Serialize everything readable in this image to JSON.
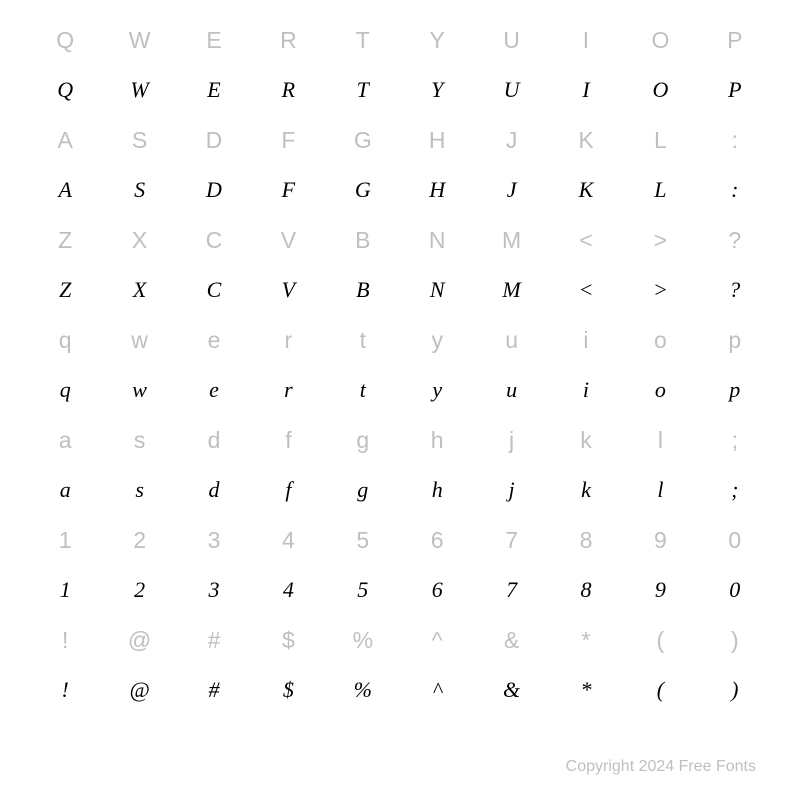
{
  "chart": {
    "type": "table",
    "background_color": "#ffffff",
    "ref_color": "#bfbfbf",
    "glyph_color": "#000000",
    "ref_fontsize": 23,
    "glyph_fontsize": 22,
    "columns": 10,
    "row_pair_heights": {
      "ref": 44,
      "glyph": 56
    },
    "rows": [
      {
        "ref": [
          "Q",
          "W",
          "E",
          "R",
          "T",
          "Y",
          "U",
          "I",
          "O",
          "P"
        ],
        "glyph": [
          "Q",
          "W",
          "E",
          "R",
          "T",
          "Y",
          "U",
          "I",
          "O",
          "P"
        ]
      },
      {
        "ref": [
          "A",
          "S",
          "D",
          "F",
          "G",
          "H",
          "J",
          "K",
          "L",
          ":"
        ],
        "glyph": [
          "A",
          "S",
          "D",
          "F",
          "G",
          "H",
          "J",
          "K",
          "L",
          ":"
        ]
      },
      {
        "ref": [
          "Z",
          "X",
          "C",
          "V",
          "B",
          "N",
          "M",
          "<",
          ">",
          "?"
        ],
        "glyph": [
          "Z",
          "X",
          "C",
          "V",
          "B",
          "N",
          "M",
          "<",
          ">",
          "?"
        ]
      },
      {
        "ref": [
          "q",
          "w",
          "e",
          "r",
          "t",
          "y",
          "u",
          "i",
          "o",
          "p"
        ],
        "glyph": [
          "q",
          "w",
          "e",
          "r",
          "t",
          "y",
          "u",
          "i",
          "o",
          "p"
        ]
      },
      {
        "ref": [
          "a",
          "s",
          "d",
          "f",
          "g",
          "h",
          "j",
          "k",
          "l",
          ";"
        ],
        "glyph": [
          "a",
          "s",
          "d",
          "f",
          "g",
          "h",
          "j",
          "k",
          "l",
          ";"
        ]
      },
      {
        "ref": [
          "1",
          "2",
          "3",
          "4",
          "5",
          "6",
          "7",
          "8",
          "9",
          "0"
        ],
        "glyph": [
          "1",
          "2",
          "3",
          "4",
          "5",
          "6",
          "7",
          "8",
          "9",
          "0"
        ]
      },
      {
        "ref": [
          "!",
          "@",
          "#",
          "$",
          "%",
          "^",
          "&",
          "*",
          "(",
          ")"
        ],
        "glyph": [
          "!",
          "@",
          "#",
          "$",
          "%",
          "^",
          "&",
          "*",
          "(",
          ")"
        ]
      }
    ]
  },
  "footer": "Copyright 2024 Free Fonts"
}
